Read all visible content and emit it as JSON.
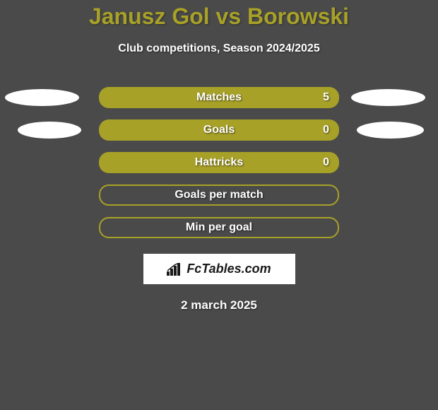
{
  "title": "Janusz Gol vs Borowski",
  "subtitle": "Club competitions, Season 2024/2025",
  "stats": [
    {
      "label": "Matches",
      "value": "5",
      "filled": true,
      "showLeftEllipse": true,
      "showRightEllipse": true,
      "showValue": true
    },
    {
      "label": "Goals",
      "value": "0",
      "filled": true,
      "showLeftEllipse": true,
      "showRightEllipse": true,
      "showValue": true
    },
    {
      "label": "Hattricks",
      "value": "0",
      "filled": true,
      "showLeftEllipse": false,
      "showRightEllipse": false,
      "showValue": true
    },
    {
      "label": "Goals per match",
      "value": "",
      "filled": false,
      "showLeftEllipse": false,
      "showRightEllipse": false,
      "showValue": false
    },
    {
      "label": "Min per goal",
      "value": "",
      "filled": false,
      "showLeftEllipse": false,
      "showRightEllipse": false,
      "showValue": false
    }
  ],
  "logo_text": "FcTables.com",
  "date": "2 march 2025",
  "colors": {
    "background": "#4a4a4a",
    "accent": "#a8a128",
    "white": "#ffffff",
    "logo_bg": "#ffffff",
    "logo_text": "#1a1a1a"
  },
  "ellipse_y_offsets": [
    0,
    2
  ]
}
